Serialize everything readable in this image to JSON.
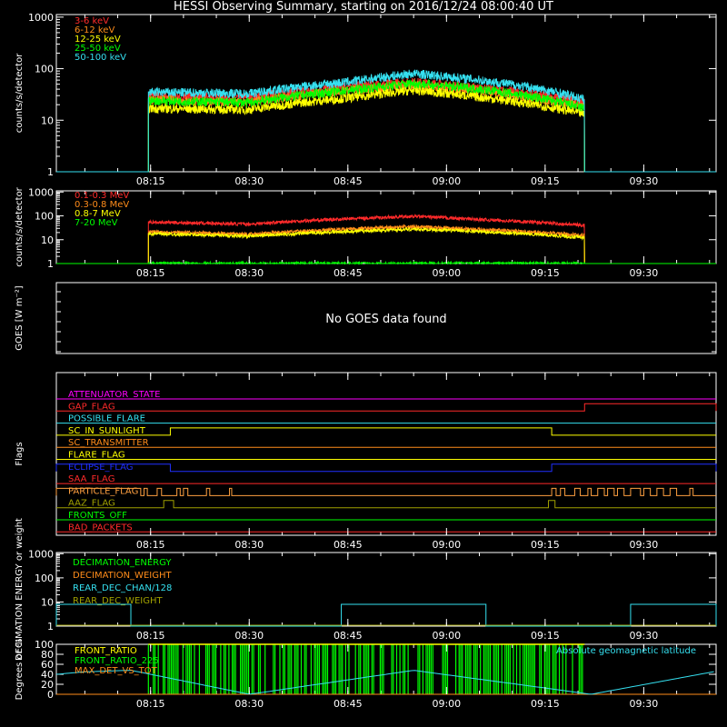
{
  "title": "HESSI Observing Summary, starting on 2016/12/24 08:00:40 UT",
  "colors": {
    "background": "#000000",
    "axes": "#ffffff",
    "red": "#ff2a2a",
    "orange": "#ff8c1a",
    "yellow": "#ffff00",
    "green": "#00ff00",
    "cyan": "#35e0f0",
    "magenta": "#ff00ff",
    "blue": "#2030ff",
    "olive": "#a0a000",
    "light_orange": "#ffa040"
  },
  "chart_data": [
    {
      "id": "hxr",
      "type": "line",
      "ylabel": "counts/s/detector",
      "yscale": "log",
      "yticks": [
        "1",
        "10",
        "100",
        "1000"
      ],
      "xticks": [
        "08:15",
        "08:30",
        "08:45",
        "09:00",
        "09:15",
        "09:30"
      ],
      "legend_position": "top-left",
      "series": [
        {
          "name": "3-6 keV",
          "color": "#ff2a2a"
        },
        {
          "name": "6-12 keV",
          "color": "#ff8c1a"
        },
        {
          "name": "12-25 keV",
          "color": "#ffff00"
        },
        {
          "name": "25-50 keV",
          "color": "#00ff00"
        },
        {
          "name": "50-100 keV",
          "color": "#35e0f0"
        }
      ],
      "data_start": "08:14:40",
      "data_end": "09:21:00",
      "profile_x": [
        "08:14:40",
        "08:30",
        "08:45",
        "08:55",
        "09:05",
        "09:21"
      ],
      "profile_y": {
        "3-6 keV": [
          30,
          27,
          45,
          55,
          42,
          22
        ],
        "6-12 keV": [
          25,
          22,
          38,
          48,
          36,
          18
        ],
        "12-25 keV": [
          17,
          16,
          27,
          38,
          28,
          13
        ],
        "25-50 keV": [
          24,
          22,
          38,
          52,
          40,
          17
        ],
        "50-100 keV": [
          35,
          33,
          55,
          80,
          60,
          25
        ]
      }
    },
    {
      "id": "gamma",
      "type": "line",
      "ylabel": "counts/s/detector",
      "yscale": "log",
      "yticks": [
        "1",
        "10",
        "100",
        "1000"
      ],
      "xticks": [
        "08:15",
        "08:30",
        "08:45",
        "09:00",
        "09:15",
        "09:30"
      ],
      "legend_position": "top-left",
      "series": [
        {
          "name": "0.1-0.3 MeV",
          "color": "#ff2a2a"
        },
        {
          "name": "0.3-0.8 MeV",
          "color": "#ff8c1a"
        },
        {
          "name": "0.8-7 MeV",
          "color": "#ffff00"
        },
        {
          "name": "7-20 MeV",
          "color": "#00ff00"
        }
      ],
      "data_start": "08:14:40",
      "data_end": "09:21:00",
      "profile_x": [
        "08:14:40",
        "08:30",
        "08:45",
        "08:55",
        "09:05",
        "09:21"
      ],
      "profile_y": {
        "0.1-0.3 MeV": [
          55,
          45,
          75,
          95,
          70,
          40
        ],
        "0.3-0.8 MeV": [
          22,
          17,
          28,
          35,
          27,
          15
        ],
        "0.8-7 MeV": [
          18,
          14,
          22,
          28,
          22,
          12
        ],
        "7-20 MeV": [
          1,
          1,
          1,
          1,
          1,
          1
        ]
      }
    },
    {
      "id": "goes",
      "type": "line",
      "ylabel": "GOES [W m⁻²]",
      "message": "No GOES data found",
      "xticks": []
    },
    {
      "id": "flags",
      "type": "table",
      "ylabel": "Flags",
      "xticks": [
        "08:15",
        "08:30",
        "08:45",
        "09:00",
        "09:15",
        "09:30"
      ],
      "flags": [
        {
          "name": "ATTENUATOR_STATE",
          "color": "#ff00ff",
          "on": []
        },
        {
          "name": "GAP_FLAG",
          "color": "#ff2a2a",
          "on": [
            [
              "09:21:00",
              "09:41:00"
            ]
          ]
        },
        {
          "name": "POSSIBLE_FLARE",
          "color": "#35e0f0",
          "on": []
        },
        {
          "name": "SC_IN_SUNLIGHT",
          "color": "#ffff00",
          "on": [
            [
              "08:18:00",
              "09:16:00"
            ]
          ]
        },
        {
          "name": "SC_TRANSMITTER",
          "color": "#ff8c1a",
          "on": []
        },
        {
          "name": "FLARE_FLAG",
          "color": "#ffff00",
          "on": []
        },
        {
          "name": "ECLIPSE_FLAG",
          "color": "#2030ff",
          "on": [
            [
              "08:00:40",
              "08:18:00"
            ],
            [
              "09:16:00",
              "09:41:00"
            ]
          ]
        },
        {
          "name": "SAA_FLAG",
          "color": "#ff2a2a",
          "on": []
        },
        {
          "name": "PARTICLE_FLAG",
          "color": "#ffa040",
          "on": [
            [
              "08:00:40",
              "08:13:30"
            ],
            [
              "08:14:00",
              "08:14:30"
            ],
            [
              "08:16:00",
              "08:16:40"
            ],
            [
              "08:19:00",
              "08:19:30"
            ],
            [
              "08:20:00",
              "08:20:40"
            ],
            [
              "08:23:30",
              "08:24:00"
            ],
            [
              "08:27:00",
              "08:27:20"
            ],
            [
              "09:16:00",
              "09:16:40"
            ],
            [
              "09:17:20",
              "09:18:00"
            ],
            [
              "09:19:30",
              "09:20:20"
            ],
            [
              "09:21:30",
              "09:22:00"
            ],
            [
              "09:23:00",
              "09:24:00"
            ],
            [
              "09:24:30",
              "09:25:30"
            ],
            [
              "09:26:00",
              "09:27:00"
            ],
            [
              "09:28:00",
              "09:29:30"
            ],
            [
              "09:30:00",
              "09:31:00"
            ],
            [
              "09:32:00",
              "09:33:00"
            ],
            [
              "09:34:00",
              "09:35:00"
            ],
            [
              "09:37:00",
              "09:37:30"
            ]
          ]
        },
        {
          "name": "AAZ_FLAG",
          "color": "#a0a000",
          "on": [
            [
              "08:17:00",
              "08:18:30"
            ],
            [
              "09:15:30",
              "09:16:30"
            ]
          ]
        },
        {
          "name": "FRONTS_OFF",
          "color": "#00ff00",
          "on": []
        },
        {
          "name": "BAD_PACKETS",
          "color": "#ff2a2a",
          "on": []
        }
      ]
    },
    {
      "id": "decimation",
      "type": "line",
      "ylabel": "DECIMATION ENERGY or weight",
      "yscale": "log",
      "yticks": [
        "1",
        "10",
        "100",
        "1000"
      ],
      "xticks": [
        "08:15",
        "08:30",
        "08:45",
        "09:00",
        "09:15",
        "09:30"
      ],
      "series": [
        {
          "name": "DECIMATION_ENERGY",
          "color": "#00ff00"
        },
        {
          "name": "DECIMATION_WEIGHT",
          "color": "#ff8c1a"
        },
        {
          "name": "REAR_DEC_CHAN/128",
          "color": "#35e0f0"
        },
        {
          "name": "REAR_DEC_WEIGHT",
          "color": "#a0a000"
        }
      ],
      "rear_dec_chan_high": [
        [
          "08:00:40",
          "08:12:00"
        ],
        [
          "08:44:00",
          "09:06:00"
        ],
        [
          "09:28:00",
          "09:41:00"
        ]
      ],
      "rear_dec_chan_high_value": 8,
      "rear_dec_chan_low_value": 1
    },
    {
      "id": "ratios",
      "type": "line",
      "ylabel": "Degrees or %",
      "yticks": [
        "0",
        "20",
        "40",
        "60",
        "80",
        "100"
      ],
      "ylim": [
        0,
        100
      ],
      "xticks": [
        "08:15",
        "08:30",
        "08:45",
        "09:00",
        "09:15",
        "09:30"
      ],
      "series": [
        {
          "name": "FRONT_RATIO",
          "color": "#ffff00"
        },
        {
          "name": "FRONT_RATIO_225",
          "color": "#00ff00"
        },
        {
          "name": "MAX_DET_VS_TOT",
          "color": "#ff8c1a"
        },
        {
          "name": "Absolute geomagnetic latitude",
          "color": "#35e0f0"
        }
      ],
      "geomag_lat": {
        "x": [
          "08:00:40",
          "08:05",
          "08:12",
          "08:30",
          "08:55",
          "09:22",
          "09:41"
        ],
        "y": [
          40,
          45,
          48,
          0,
          48,
          0,
          46
        ]
      }
    }
  ]
}
